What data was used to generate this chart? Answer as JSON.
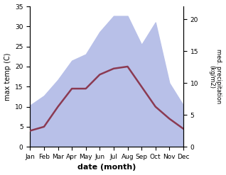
{
  "months": [
    "Jan",
    "Feb",
    "Mar",
    "Apr",
    "May",
    "Jun",
    "Jul",
    "Aug",
    "Sep",
    "Oct",
    "Nov",
    "Dec"
  ],
  "max_temp": [
    4.0,
    5.0,
    10.0,
    14.5,
    14.5,
    18.0,
    19.5,
    20.0,
    15.0,
    10.0,
    7.0,
    4.5
  ],
  "precipitation": [
    6.5,
    8.0,
    10.5,
    13.5,
    14.5,
    18.0,
    20.5,
    20.5,
    16.0,
    19.5,
    10.0,
    6.5
  ],
  "temp_color": "#8b3a52",
  "precip_fill_color": "#b8c0e8",
  "xlabel": "date (month)",
  "ylabel_left": "max temp (C)",
  "ylabel_right": "med. precipitation\n(kg/m2)",
  "ylim_left": [
    0,
    35
  ],
  "ylim_right": [
    0,
    22
  ],
  "yticks_left": [
    0,
    5,
    10,
    15,
    20,
    25,
    30,
    35
  ],
  "yticks_right": [
    0,
    5,
    10,
    15,
    20
  ],
  "bg_color": "#ffffff",
  "line_width": 1.8
}
